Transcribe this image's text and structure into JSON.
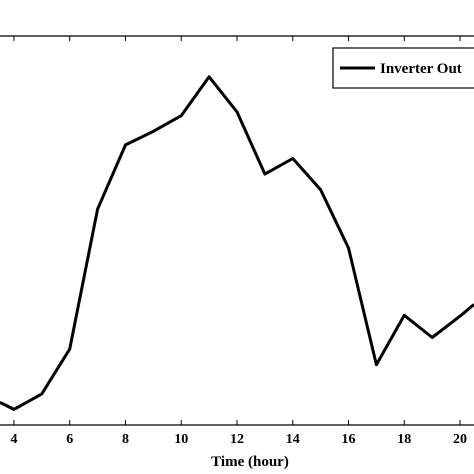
{
  "chart_data": {
    "type": "line",
    "xlabel": "Time (hour)",
    "ylabel": "",
    "title": "",
    "xlim": [
      3.5,
      20.5
    ],
    "ylim": [
      0,
      1
    ],
    "x_ticks": [
      4,
      6,
      8,
      10,
      12,
      14,
      16,
      18,
      20
    ],
    "grid": false,
    "legend": {
      "position": "top-right",
      "entries": [
        "Inverter Out"
      ]
    },
    "colors": {
      "line": "#000000",
      "axes": "#000000"
    },
    "series": [
      {
        "name": "Inverter Out",
        "x": [
          3.5,
          4,
          5,
          6,
          7,
          8,
          9,
          10,
          11,
          12,
          13,
          14,
          15,
          16,
          17,
          18,
          19,
          20,
          20.5
        ],
        "y": [
          0.058,
          0.04,
          0.08,
          0.195,
          0.555,
          0.72,
          0.755,
          0.795,
          0.895,
          0.805,
          0.645,
          0.685,
          0.605,
          0.455,
          0.155,
          0.282,
          0.225,
          0.28,
          0.31
        ]
      }
    ]
  }
}
